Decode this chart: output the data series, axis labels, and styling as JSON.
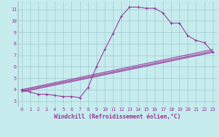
{
  "title": "",
  "xlabel": "Windchill (Refroidissement éolien,°C)",
  "ylabel": "",
  "bg_color": "#c6ecee",
  "grid_color": "#a0c8d0",
  "line_color": "#993399",
  "x_ticks": [
    0,
    1,
    2,
    3,
    4,
    5,
    6,
    7,
    8,
    9,
    10,
    11,
    12,
    13,
    14,
    15,
    16,
    17,
    18,
    19,
    20,
    21,
    22,
    23
  ],
  "y_ticks": [
    3,
    4,
    5,
    6,
    7,
    8,
    9,
    10,
    11
  ],
  "xlim": [
    -0.5,
    23.5
  ],
  "ylim": [
    2.5,
    11.7
  ],
  "line1_x": [
    0,
    1,
    2,
    3,
    4,
    5,
    6,
    7,
    8,
    9,
    10,
    11,
    12,
    13,
    14,
    15,
    16,
    17,
    18,
    19,
    20,
    21,
    22,
    23
  ],
  "line1_y": [
    4.0,
    3.8,
    3.6,
    3.6,
    3.5,
    3.4,
    3.4,
    3.3,
    4.2,
    6.0,
    7.5,
    8.9,
    10.4,
    11.2,
    11.2,
    11.1,
    11.1,
    10.7,
    9.8,
    9.8,
    8.7,
    8.3,
    8.1,
    7.3
  ],
  "line2_x": [
    0,
    23
  ],
  "line2_y": [
    4.0,
    7.5
  ],
  "line3_x": [
    0,
    23
  ],
  "line3_y": [
    3.9,
    7.35
  ],
  "line4_x": [
    0,
    23
  ],
  "line4_y": [
    3.8,
    7.25
  ],
  "marker": "+",
  "markersize": 3.5,
  "markeredgewidth": 0.8,
  "linewidth": 0.8,
  "tick_fontsize": 5.0,
  "xlabel_fontsize": 6.0
}
